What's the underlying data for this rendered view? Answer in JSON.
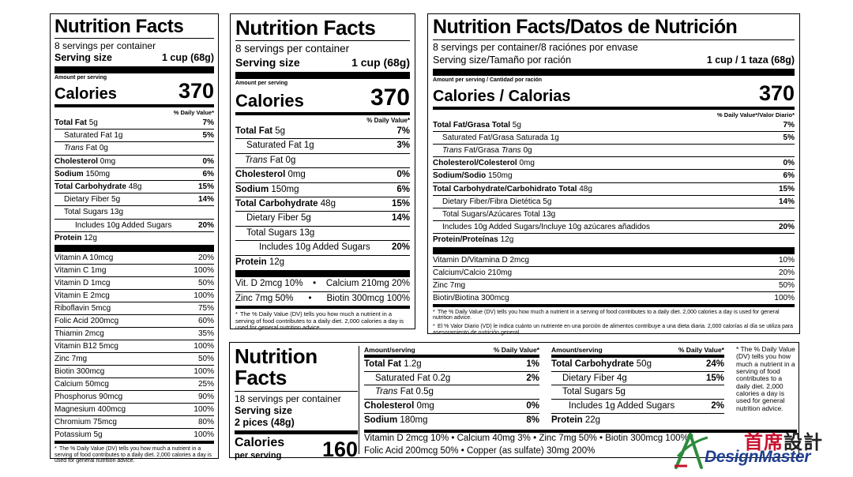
{
  "panel1": {
    "title": "Nutrition Facts",
    "servings": "8 servings per container",
    "serving_size_label": "Serving size",
    "serving_size_value": "1 cup (68g)",
    "amount_per_serving": "Amount per serving",
    "calories_label": "Calories",
    "calories_value": "370",
    "dv_header": "% Daily Value*",
    "nutrients": [
      {
        "name": "Total Fat",
        "amount": "5g",
        "pct": "7%"
      },
      {
        "name": "Saturated Fat",
        "amount": "1g",
        "pct": "5%"
      },
      {
        "name_italic": "Trans",
        "name": "Fat",
        "amount": "0g",
        "pct": ""
      },
      {
        "name": "Cholesterol",
        "amount": "0mg",
        "pct": "0%"
      },
      {
        "name": "Sodium",
        "amount": "150mg",
        "pct": "6%"
      },
      {
        "name": "Total Carbohydrate",
        "amount": "48g",
        "pct": "15%"
      },
      {
        "name": "Dietary Fiber",
        "amount": "5g",
        "pct": "14%"
      },
      {
        "name": "Total Sugars",
        "amount": "13g",
        "pct": ""
      },
      {
        "name": "Includes 10g Added Sugars",
        "amount": "",
        "pct": "20%"
      },
      {
        "name": "Protein",
        "amount": "12g",
        "pct": ""
      }
    ],
    "vitamins": [
      {
        "name": "Vitamin A 10mcg",
        "pct": "20%"
      },
      {
        "name": "Vitamin C 1mg",
        "pct": "100%"
      },
      {
        "name": "Vitamin D 1mcg",
        "pct": "50%"
      },
      {
        "name": "Vitamin E 2mcg",
        "pct": "100%"
      },
      {
        "name": "Riboflavin 5mcg",
        "pct": "75%"
      },
      {
        "name": "Folic Acid 200mcg",
        "pct": "60%"
      },
      {
        "name": "Thiamin 2mcg",
        "pct": "35%"
      },
      {
        "name": "Vitamin B12 5mcg",
        "pct": "100%"
      },
      {
        "name": "Zinc 7mg",
        "pct": "50%"
      },
      {
        "name": "Biotin 300mcg",
        "pct": "100%"
      },
      {
        "name": "Calcium 50mcg",
        "pct": "25%"
      },
      {
        "name": "Phosphorus 90mcg",
        "pct": "90%"
      },
      {
        "name": "Magnesium 400mcg",
        "pct": "100%"
      },
      {
        "name": "Chromium 75mcg",
        "pct": "80%"
      },
      {
        "name": "Potassium 5g",
        "pct": "100%"
      }
    ],
    "footnote": "The % Daily Value (DV) tells you how much a nutrient in a serving of food contributes to a daily diet. 2,000 calories a day is used for general nutrition advice."
  },
  "panel2": {
    "title": "Nutrition Facts",
    "servings": "8 servings per container",
    "serving_size_label": "Serving size",
    "serving_size_value": "1 cup (68g)",
    "amount_per_serving": "Amount per serving",
    "calories_label": "Calories",
    "calories_value": "370",
    "dv_header": "% Daily Value*",
    "nutrients": [
      {
        "name": "Total Fat",
        "amount": "5g",
        "pct": "7%"
      },
      {
        "name": "Saturated Fat",
        "amount": "1g",
        "pct": "3%"
      },
      {
        "name_italic": "Trans",
        "name": "Fat",
        "amount": "0g",
        "pct": ""
      },
      {
        "name": "Cholesterol",
        "amount": "0mg",
        "pct": "0%"
      },
      {
        "name": "Sodium",
        "amount": "150mg",
        "pct": "6%"
      },
      {
        "name": "Total Carbohydrate",
        "amount": "48g",
        "pct": "15%"
      },
      {
        "name": "Dietary Fiber",
        "amount": "5g",
        "pct": "14%"
      },
      {
        "name": "Total Sugars",
        "amount": "13g",
        "pct": ""
      },
      {
        "name": "Includes 10g Added Sugars",
        "amount": "",
        "pct": "20%"
      },
      {
        "name": "Protein",
        "amount": "12g",
        "pct": ""
      }
    ],
    "vit_line1_a": "Vit. D 2mcg 10%",
    "vit_line1_b": "Calcium 210mg 20%",
    "vit_line2_a": "Zinc 7mg 50%",
    "vit_line2_b": "Biotin 300mcg 100%",
    "bullet": "•",
    "footnote": "The % Daily Value (DV) tells you how much a nutrient in a serving of food contributes to a daily diet. 2,000 calories a day is used for general nutrition advice."
  },
  "panel3": {
    "title": "Nutrition Facts/Datos de Nutrición",
    "servings": "8 servings per container/8 raciónes por envase",
    "serving_size_label": "Serving size/Tamaño por ración",
    "serving_size_value": "1 cup / 1 taza (68g)",
    "amount_per_serving": "Amount per serving / Cantidad por ración",
    "calories_label": "Calories / Calorias",
    "calories_value": "370",
    "dv_header": "% Daily Value*/Valor Diario*",
    "nutrients": [
      {
        "name": "Total Fat/Grasa Total",
        "amount": "5g",
        "pct": "7%"
      },
      {
        "name": "Saturated Fat/Grasa Saturada",
        "amount": "1g",
        "pct": "5%"
      },
      {
        "name": "Trans Fat/Grasa Trans",
        "amount": "0g",
        "pct": ""
      },
      {
        "name": "Cholesterol/Colesterol",
        "amount": "0mg",
        "pct": "0%"
      },
      {
        "name": "Sodium/Sodio",
        "amount": "150mg",
        "pct": "6%"
      },
      {
        "name": "Total Carbohydrate/Carbohidrato Total",
        "amount": "48g",
        "pct": "15%"
      },
      {
        "name": "Dietary Fiber/Fibra Dietética",
        "amount": "5g",
        "pct": "14%"
      },
      {
        "name": "Total Sugars/Azúcares Total",
        "amount": "13g",
        "pct": ""
      },
      {
        "name": "Includes 10g Added Sugars/Incluye 10g azúcares añadidos",
        "amount": "",
        "pct": "20%"
      },
      {
        "name": "Protein/Proteínas",
        "amount": "12g",
        "pct": ""
      }
    ],
    "vitamins": [
      {
        "name": "Vitamin D/Vitamina D 2mcg",
        "pct": "10%"
      },
      {
        "name": "Calcium/Calcio 210mg",
        "pct": "20%"
      },
      {
        "name": "Zinc 7mg",
        "pct": "50%"
      },
      {
        "name": "Biotin/Biotina 300mcg",
        "pct": "100%"
      }
    ],
    "footnote_en": "The % Daily Value (DV) tells you how much a nutrient in a serving of food contributes to a daily diet. 2,000 calories a day is used for general nutrition advice.",
    "footnote_es": "El % Valor Diario (VD) le indica cuánto un nutriente en una porción de alimentos contribuye a una dieta diaria. 2,000 calorías al día se utiliza para asesoramiento de nutrición general."
  },
  "panel4": {
    "title_line1": "Nutrition",
    "title_line2": "Facts",
    "servings": "18 servings per container",
    "serving_size_label": "Serving size",
    "serving_size_value": "2 pices (48g)",
    "calories_label": "Calories",
    "per_serving": "per serving",
    "calories_value": "160",
    "col1_head_left": "Amount/serving",
    "col1_head_right": "% Daily Value*",
    "col1_rows": [
      {
        "name": "Total Fat",
        "amount": "1.2g",
        "pct": "1%",
        "bold": true
      },
      {
        "name": "Saturated Fat",
        "amount": "0.2g",
        "pct": "2%",
        "bold": false
      },
      {
        "name_italic": "Trans",
        "name": "Fat",
        "amount": "0.5g",
        "pct": "",
        "bold": false
      },
      {
        "name": "Cholesterol",
        "amount": "0mg",
        "pct": "0%",
        "bold": true
      },
      {
        "name": "Sodium",
        "amount": "180mg",
        "pct": "8%",
        "bold": true
      }
    ],
    "col2_head_left": "Amount/serving",
    "col2_head_right": "% Daily Value*",
    "col2_rows": [
      {
        "name": "Total Carbohydrate",
        "amount": "50g",
        "pct": "24%",
        "bold": true
      },
      {
        "name": "Dietary Fiber",
        "amount": "4g",
        "pct": "15%",
        "bold": false
      },
      {
        "name": "Total Sugars",
        "amount": "5g",
        "pct": "",
        "bold": false
      },
      {
        "name": "Includes 1g Added Sugars",
        "amount": "",
        "pct": "2%",
        "bold": false
      },
      {
        "name": "Protein",
        "amount": "22g",
        "pct": "",
        "bold": true
      }
    ],
    "footnote": "The % Daily Value (DV) tells you how much a nutrient in a serving of food contributes to a daily diet. 2,000 calories a day is used for general nutrition advice.",
    "vit_line1": "Vitamin D 2mcg 10%  •  Calcium 40mg 3%  •  Zinc 7mg 50%  •  Biotin 300mcg 100%",
    "vit_line2": "Folic Acid 200mcg 50%  •  Copper (as sulfate) 30mg 200%"
  },
  "logo": {
    "cn_red": "首席",
    "cn_black": "設計",
    "en": "DesignMaster",
    "accent_red": "#c8102e",
    "accent_blue": "#1f3f8f",
    "accent_green": "#2e8b3d"
  }
}
